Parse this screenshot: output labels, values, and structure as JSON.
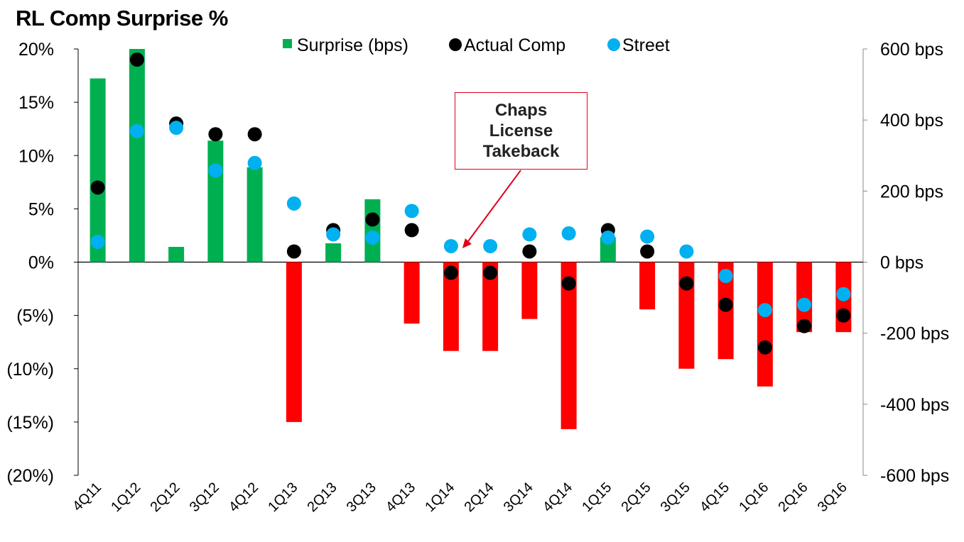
{
  "chart_data": {
    "type": "bar",
    "title": "RL Comp Surprise %",
    "categories": [
      "4Q11",
      "1Q12",
      "2Q12",
      "3Q12",
      "4Q12",
      "1Q13",
      "2Q13",
      "3Q13",
      "4Q13",
      "1Q14",
      "2Q14",
      "3Q14",
      "4Q14",
      "1Q15",
      "2Q15",
      "3Q15",
      "4Q15",
      "1Q16",
      "2Q16",
      "3Q16"
    ],
    "left_axis": {
      "ylim": [
        -20,
        20
      ],
      "ticks": [
        20,
        15,
        10,
        5,
        0,
        -5,
        -10,
        -15,
        -20
      ],
      "tick_labels": [
        "20%",
        "15%",
        "10%",
        "5%",
        "0%",
        "(5%)",
        "(10%)",
        "(15%)",
        "(20%)"
      ]
    },
    "right_axis": {
      "ylim": [
        -600,
        600
      ],
      "ticks": [
        600,
        400,
        200,
        0,
        -200,
        -400,
        -600
      ],
      "tick_labels": [
        "600 bps",
        "400 bps",
        "200 bps",
        "0 bps",
        "-200 bps",
        "-400 bps",
        "-600 bps"
      ]
    },
    "series": [
      {
        "name": "Surprise (bps)",
        "type": "bar",
        "axis": "right",
        "values": [
          517,
          600,
          43,
          342,
          267,
          -450,
          53,
          177,
          -173,
          -250,
          -250,
          -160,
          -470,
          70,
          -133,
          -300,
          -273,
          -350,
          -197,
          -197
        ]
      },
      {
        "name": "Actual Comp",
        "type": "scatter",
        "axis": "left",
        "color": "#000000",
        "values": [
          7,
          19,
          13,
          12,
          12,
          1,
          3,
          4,
          3,
          -1,
          -1,
          1,
          -2,
          3,
          1,
          -2,
          -4,
          -8,
          -6,
          -5
        ]
      },
      {
        "name": "Street",
        "type": "scatter",
        "axis": "left",
        "color": "#00b0f0",
        "values": [
          1.9,
          12.3,
          12.6,
          8.6,
          9.3,
          5.5,
          2.6,
          2.3,
          4.8,
          1.5,
          1.5,
          2.6,
          2.7,
          2.3,
          2.4,
          1.0,
          -1.3,
          -4.5,
          -4.0,
          -3.0
        ]
      }
    ],
    "legend": {
      "position": "top-center",
      "items": [
        {
          "label": "Surprise (bps)",
          "marker": "square",
          "color": "#00b050"
        },
        {
          "label": "Actual Comp",
          "marker": "circle",
          "color": "#000000"
        },
        {
          "label": "Street",
          "marker": "circle",
          "color": "#00b0f0"
        }
      ]
    },
    "annotation": {
      "text": "Chaps\nLicense\nTakeback",
      "target_category": "1Q14"
    },
    "colors": {
      "positive_bar": "#00b050",
      "negative_bar": "#ff0000",
      "actual": "#000000",
      "street": "#00b0f0",
      "callout_border": "#e0001b"
    }
  }
}
